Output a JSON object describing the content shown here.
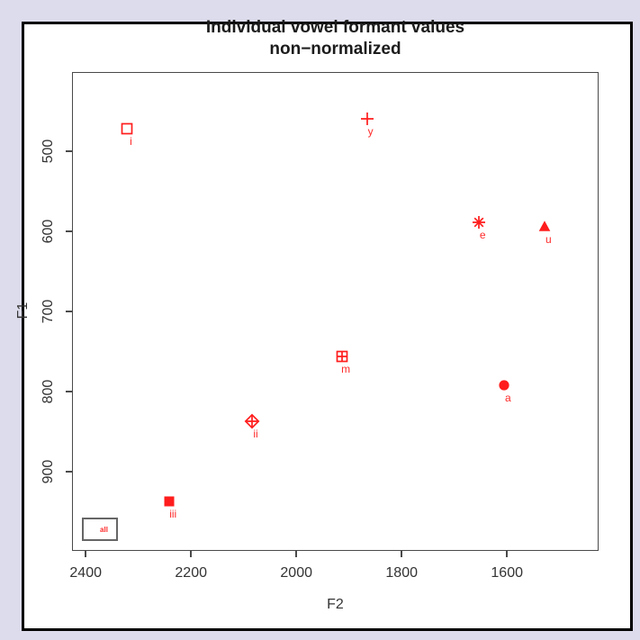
{
  "window": {
    "background": "#dcdcec",
    "frame_border": "#000000",
    "canvas": "#ffffff"
  },
  "chart_data": {
    "type": "scatter",
    "title": "Individual vowel formant values",
    "subtitle": "non−normalized",
    "xlabel": "F2",
    "ylabel": "F1",
    "grid": false,
    "x_axis": {
      "ticks": [
        2400,
        2200,
        2000,
        1800,
        1600
      ],
      "range": [
        2426,
        1426
      ],
      "reversed": true
    },
    "y_axis": {
      "ticks": [
        500,
        600,
        700,
        800,
        900
      ],
      "range": [
        401,
        999
      ],
      "reversed": true
    },
    "colors": {
      "points": "#ff1d1d",
      "point_labels": "#ff2a2a",
      "axis": "#4a4a4a",
      "tick_text": "#333333",
      "title_text": "#1c1c1c"
    },
    "points": [
      {
        "label": "i",
        "symbol": "open-square",
        "f2": 2321,
        "f1": 472
      },
      {
        "label": "y",
        "symbol": "plus",
        "f2": 1866,
        "f1": 460
      },
      {
        "label": "e",
        "symbol": "asterisk",
        "f2": 1653,
        "f1": 589
      },
      {
        "label": "u",
        "symbol": "filled-triangle",
        "f2": 1528,
        "f1": 594
      },
      {
        "label": "m",
        "symbol": "square-plus",
        "f2": 1913,
        "f1": 756
      },
      {
        "label": "a",
        "symbol": "filled-circle",
        "f2": 1605,
        "f1": 792
      },
      {
        "label": "ii",
        "symbol": "diamond-plus",
        "f2": 2084,
        "f1": 837
      },
      {
        "label": "iii",
        "symbol": "filled-square",
        "f2": 2241,
        "f1": 937
      }
    ],
    "legend": {
      "label": "all",
      "position": "bottom-left",
      "text_color": "#ff2a2a"
    }
  }
}
